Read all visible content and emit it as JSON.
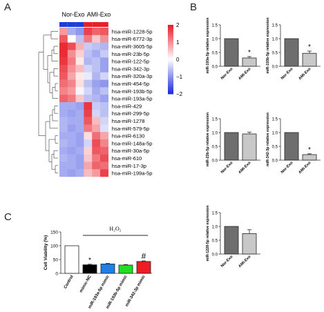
{
  "panels": {
    "a": "A",
    "b": "B",
    "c": "C"
  },
  "heatmap": {
    "group_labels": [
      "Nor-Exo",
      "AMI-Exo"
    ],
    "group_colors": [
      "#1f3ddb",
      "#e8202a"
    ],
    "rows": [
      "hsa-miR-1228-5p",
      "hsa-miR-6772-3p",
      "hsa-miR-3605-5p",
      "hsa-miR-23b-5p",
      "hsa-miR-122-5p",
      "hsa-miR-342-3p",
      "hsa-miR-320a-3p",
      "hsa-miR-454-5p",
      "hsa-miR-193b-5p",
      "hsa-miR-193a-5p",
      "hsa-miR-429",
      "hsa-miR-299-5p",
      "hsa-miR-1278",
      "hsa-miR-579-5p",
      "hsa-miR-6130",
      "hsa-miR-148a-5p",
      "hsa-miR-30a-5p",
      "hsa-miR-610",
      "hsa-miR-17-3p",
      "hsa-miR-199a-5p"
    ],
    "values": [
      [
        0.9,
        -0.8,
        -1.0,
        1.7,
        1.4,
        1.5
      ],
      [
        1.5,
        0.0,
        -0.6,
        1.2,
        0.5,
        1.0
      ],
      [
        1.9,
        1.6,
        0.7,
        -0.5,
        -0.6,
        -0.7
      ],
      [
        1.9,
        1.0,
        0.4,
        -0.6,
        -0.8,
        -0.5
      ],
      [
        1.8,
        1.2,
        0.2,
        -0.7,
        -0.6,
        -0.9
      ],
      [
        1.6,
        1.0,
        0.6,
        -0.4,
        -0.6,
        -0.9
      ],
      [
        1.5,
        0.8,
        0.2,
        -0.2,
        -0.7,
        -0.4
      ],
      [
        1.3,
        1.1,
        0.3,
        -0.6,
        -0.9,
        -1.0
      ],
      [
        1.1,
        0.9,
        -0.1,
        -0.4,
        -0.8,
        -0.6
      ],
      [
        1.4,
        1.2,
        0.5,
        -0.6,
        -0.7,
        -0.9
      ],
      [
        -0.8,
        -0.8,
        -0.9,
        1.8,
        -0.5,
        -0.6
      ],
      [
        -0.8,
        -0.9,
        -0.8,
        1.7,
        -0.4,
        -0.6
      ],
      [
        -0.7,
        -0.8,
        -0.8,
        1.5,
        0.6,
        -0.4
      ],
      [
        -0.7,
        -0.9,
        -0.8,
        1.2,
        0.8,
        -0.3
      ],
      [
        -0.8,
        -0.8,
        -0.9,
        0.3,
        1.3,
        0.8
      ],
      [
        -0.7,
        -0.8,
        -0.9,
        -0.4,
        1.6,
        1.1
      ],
      [
        -0.8,
        -0.9,
        -0.8,
        0.4,
        1.5,
        1.4
      ],
      [
        -0.7,
        -0.8,
        -0.9,
        0.5,
        1.2,
        1.6
      ],
      [
        -0.8,
        -0.8,
        -0.9,
        0.8,
        1.4,
        1.3
      ],
      [
        -0.8,
        -0.9,
        -0.8,
        0.6,
        0.9,
        1.7
      ]
    ],
    "colorbar_ticks": [
      "2",
      "1",
      "0",
      "−1",
      "−2"
    ],
    "colors": {
      "high": "#e8202a",
      "mid": "#ffffff",
      "low": "#1f2fdb"
    }
  },
  "chart_data": [
    {
      "type": "heatmap",
      "columns_groups": [
        "Nor-Exo",
        "AMI-Exo"
      ],
      "row_labels_ref": "heatmap.rows",
      "scale_range": [
        -2,
        2
      ]
    },
    {
      "type": "bar",
      "ylabel": "miR-193a-5p relative expression",
      "categories": [
        "Nor-Exo",
        "AMI-Exo"
      ],
      "values": [
        1.0,
        0.3
      ],
      "errors": [
        0,
        0.05
      ],
      "ylim": [
        0,
        1.5
      ],
      "yticks": [
        "0.0",
        "0.5",
        "1.0",
        "1.5"
      ],
      "annotation": "*"
    },
    {
      "type": "bar",
      "ylabel": "miR-193b-5p relative expression",
      "categories": [
        "Nor-Exo",
        "AMI-Exo"
      ],
      "values": [
        1.0,
        0.47
      ],
      "errors": [
        0,
        0.08
      ],
      "ylim": [
        0,
        1.5
      ],
      "yticks": [
        "0.0",
        "0.5",
        "1.0",
        "1.5"
      ],
      "annotation": "*"
    },
    {
      "type": "bar",
      "ylabel": "miR-23b-5p relative expression",
      "categories": [
        "Nor-Exo",
        "AMI-Exo"
      ],
      "values": [
        1.0,
        0.95
      ],
      "errors": [
        0,
        0.06
      ],
      "ylim": [
        0,
        1.5
      ],
      "yticks": [
        "0.0",
        "0.5",
        "1.0",
        "1.5"
      ],
      "annotation": ""
    },
    {
      "type": "bar",
      "ylabel": "miR-342-3p relative expression",
      "categories": [
        "Nor-Exo",
        "AMI-Exo"
      ],
      "values": [
        1.0,
        0.2
      ],
      "errors": [
        0,
        0.03
      ],
      "ylim": [
        0,
        1.5
      ],
      "yticks": [
        "0.0",
        "0.5",
        "1.0",
        "1.5"
      ],
      "annotation": "*"
    },
    {
      "type": "bar",
      "ylabel": "miR-1228-5p relative expression",
      "categories": [
        "Nor-Exo",
        "AMI-Exo"
      ],
      "values": [
        1.0,
        0.74
      ],
      "errors": [
        0,
        0.14
      ],
      "ylim": [
        0,
        1.5
      ],
      "yticks": [
        "0.0",
        "0.5",
        "1.0",
        "1.5"
      ],
      "annotation": ""
    },
    {
      "type": "bar",
      "ylabel": "Cell Viability (%)",
      "categories": [
        "Control",
        "mimic-NC",
        "miR-193a-5p mimic",
        "miR-193b-5p mimic",
        "miR-342-3p mimic"
      ],
      "values": [
        100,
        31,
        34,
        30,
        43
      ],
      "errors": [
        0,
        2,
        2,
        2,
        2
      ],
      "colors": [
        "#ffffff",
        "#000000",
        "#1e7fe6",
        "#22dd22",
        "#ee1c24"
      ],
      "ylim": [
        0,
        150
      ],
      "yticks": [
        "0",
        "50",
        "100",
        "150"
      ],
      "treatment_label": "H₂O₂",
      "annotations": [
        "",
        "*",
        "",
        "",
        "#"
      ]
    }
  ]
}
